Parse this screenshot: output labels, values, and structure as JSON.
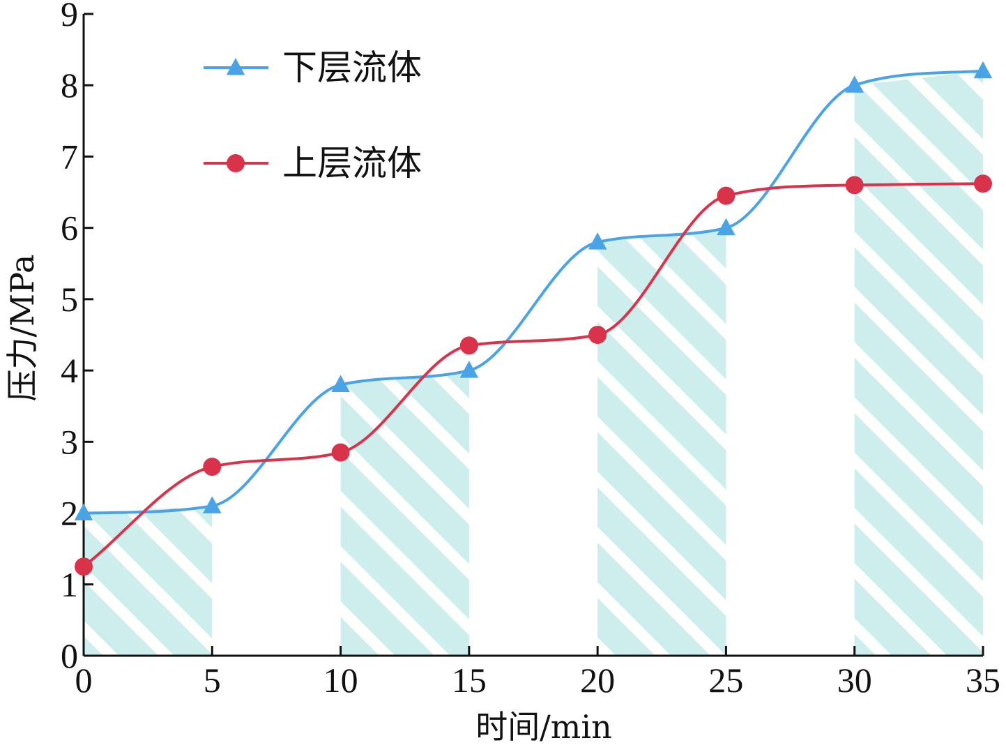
{
  "chart_data": {
    "type": "line",
    "xlabel": "时间/min",
    "ylabel": "压力/MPa",
    "xlim": [
      0,
      35
    ],
    "ylim": [
      0,
      9
    ],
    "x_ticks": [
      "0",
      "5",
      "10",
      "15",
      "20",
      "25",
      "30",
      "35"
    ],
    "y_ticks": [
      "0",
      "1",
      "2",
      "3",
      "4",
      "5",
      "6",
      "7",
      "8",
      "9"
    ],
    "x": [
      0,
      5,
      10,
      15,
      20,
      25,
      30,
      35
    ],
    "series": [
      {
        "name": "下层流体",
        "color": "#4aa3e6",
        "marker": "triangle",
        "values": [
          2.0,
          2.1,
          3.8,
          4.0,
          5.8,
          6.0,
          8.0,
          8.2
        ]
      },
      {
        "name": "上层流体",
        "color": "#d8334a",
        "marker": "circle",
        "values": [
          1.25,
          2.65,
          2.85,
          4.35,
          4.5,
          6.45,
          6.6,
          6.62
        ]
      }
    ],
    "shaded_intervals": [
      [
        0,
        5
      ],
      [
        10,
        15
      ],
      [
        20,
        25
      ],
      [
        30,
        35
      ]
    ],
    "shade_color": "#cdeeed",
    "legend_position": "top-left",
    "grid": false
  }
}
